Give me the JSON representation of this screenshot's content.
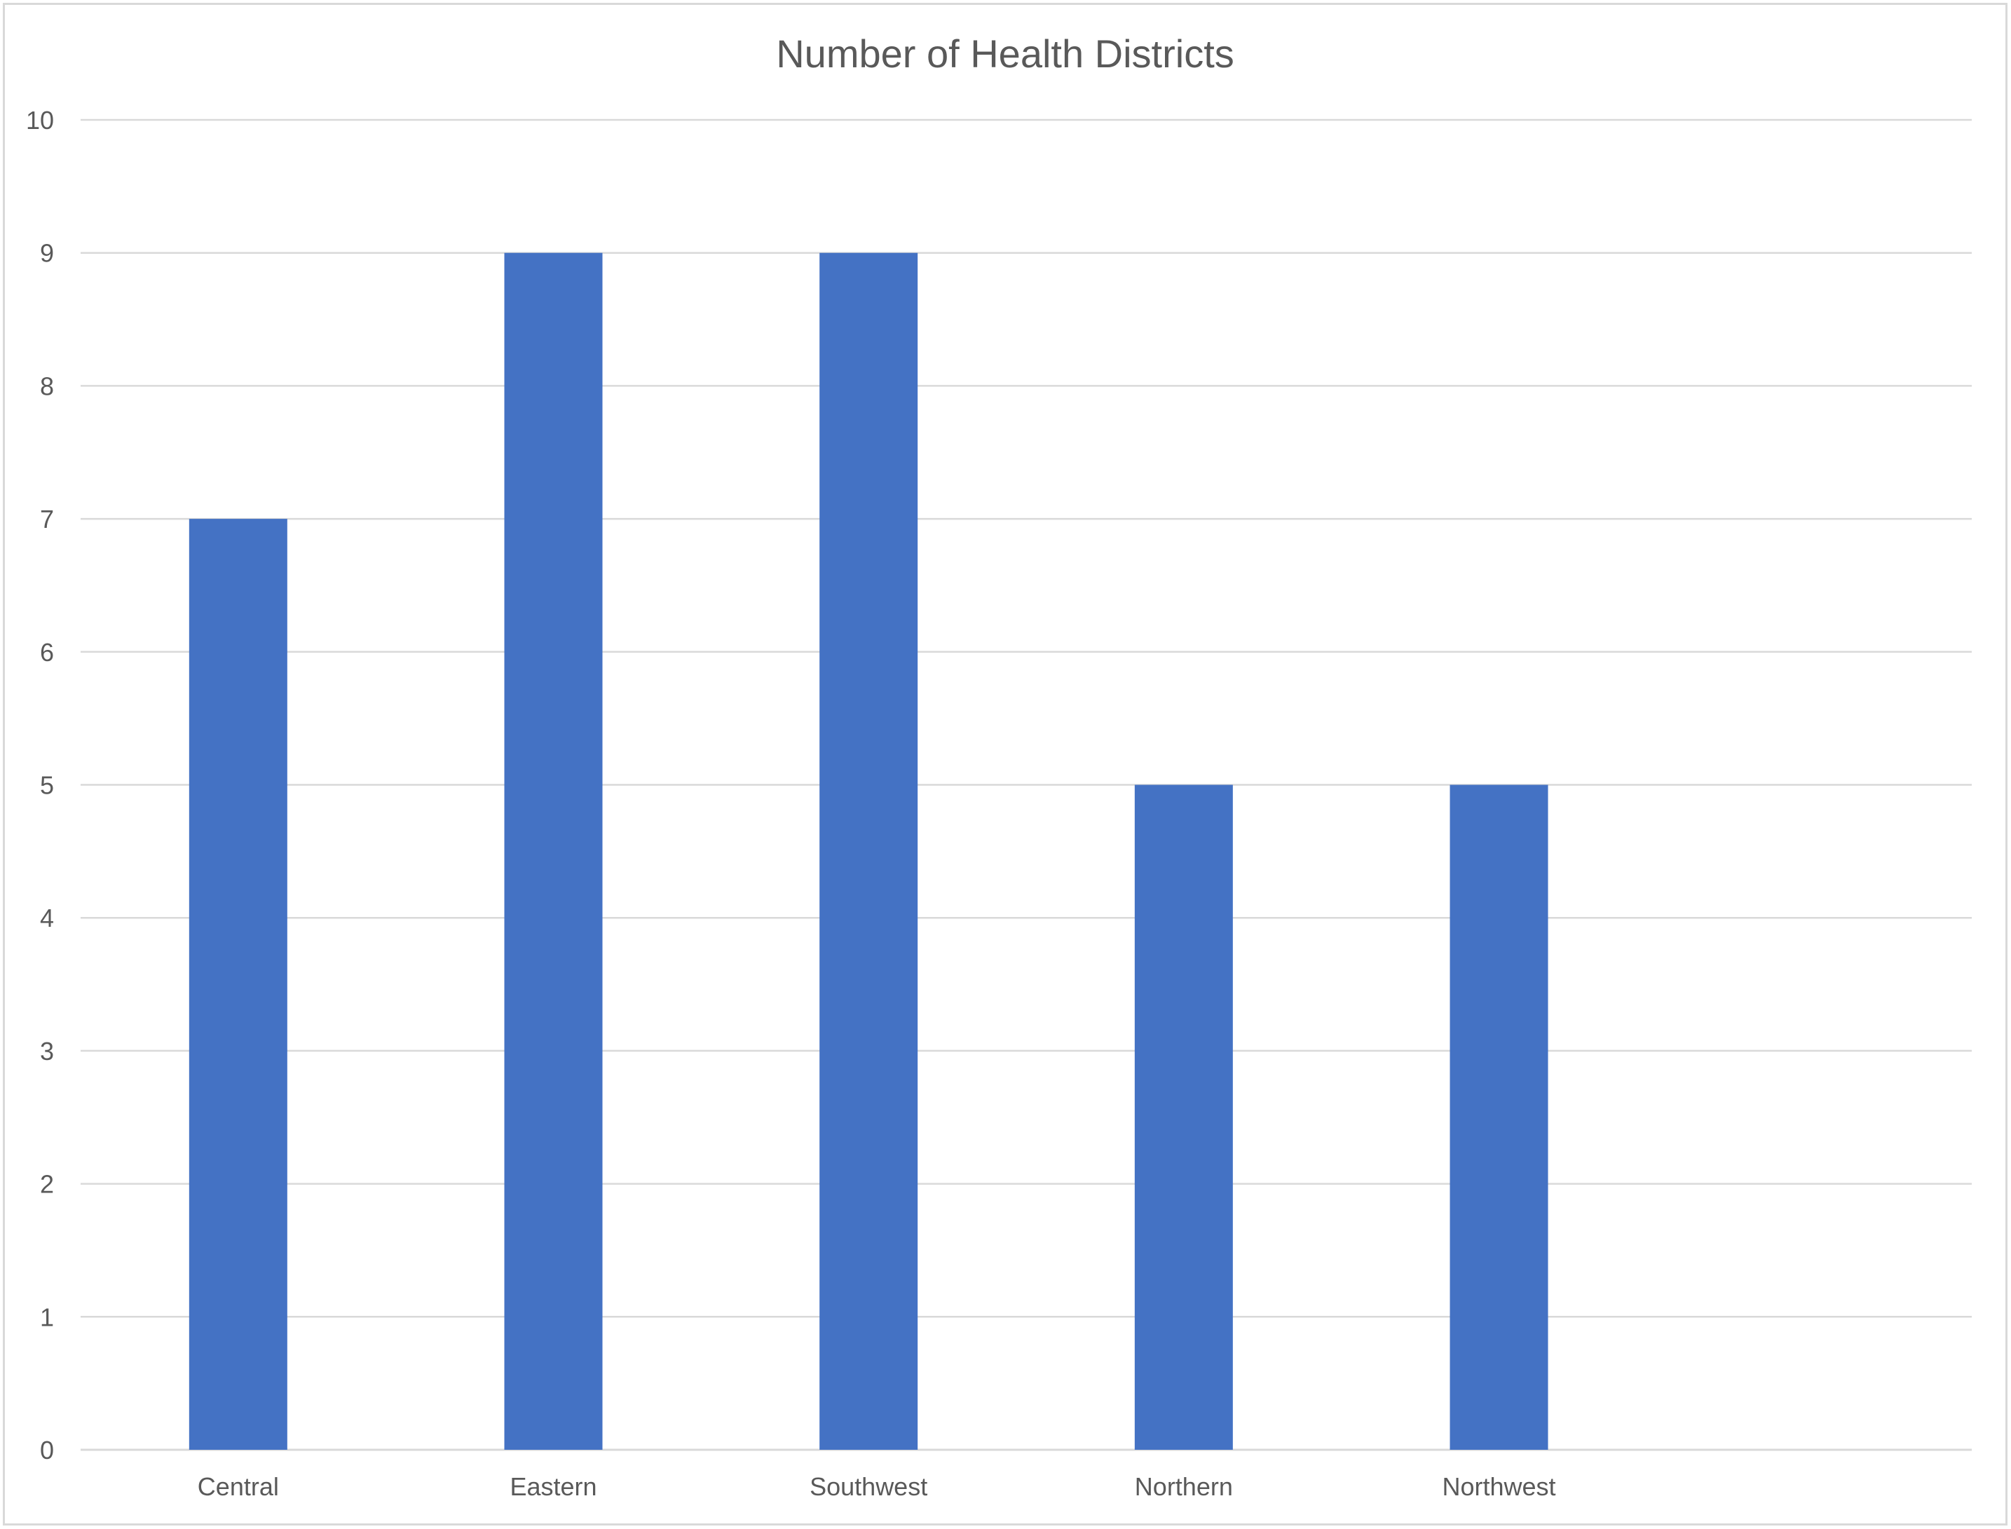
{
  "chart_data": {
    "type": "bar",
    "title": "Number of Health Districts",
    "xlabel": "",
    "ylabel": "",
    "categories": [
      "Central",
      "Eastern",
      "Southwest",
      "Northern",
      "Northwest"
    ],
    "series": [
      {
        "values": [
          7,
          9,
          9,
          5,
          5
        ],
        "color": "#4472c4"
      }
    ],
    "ylim": [
      0,
      10
    ],
    "yticks": [
      "0",
      "1",
      "2",
      "3",
      "4",
      "5",
      "6",
      "7",
      "8",
      "9",
      "10"
    ],
    "grid": true,
    "legend": "none"
  }
}
